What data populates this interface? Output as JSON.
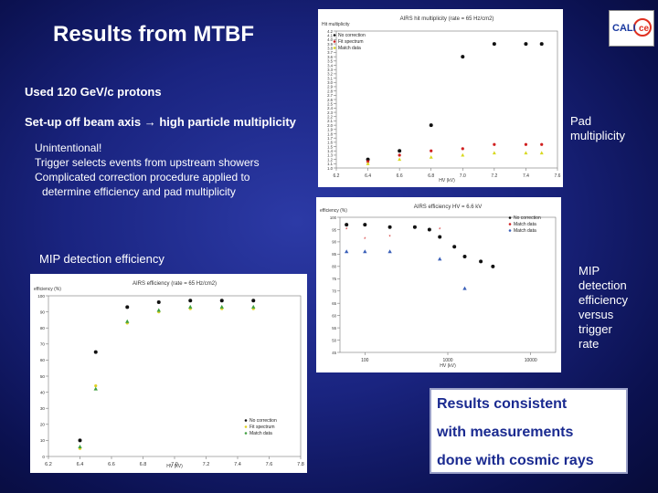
{
  "slide": {
    "title": "Results from MTBF",
    "line1": "Used 120 GeV/c protons",
    "line2": "Set-up off beam axis → high particle multiplicity",
    "notes": [
      "Unintentional!",
      "Trigger selects events from upstream showers",
      "Complicated correction procedure applied to",
      "   determine efficiency and pad multiplicity"
    ],
    "mip_label": "MIP detection efficiency",
    "pad_label": [
      "Pad",
      "multiplicity"
    ],
    "mip_rate_label": [
      "MIP",
      "detection",
      "efficiency",
      "versus",
      "trigger",
      "rate"
    ],
    "results_box": [
      "Results consistent",
      "with measurements",
      "done with cosmic rays"
    ],
    "logo_text": "CALICE"
  },
  "chart_data": [
    {
      "type": "scatter",
      "title": "AIRS hit multiplicity (rate = 65 Hz/cm2)",
      "ylabel": "Hit multiplicity",
      "xlabel": "HV (kV)",
      "xlim": [
        6.2,
        7.6
      ],
      "ylim": [
        1.0,
        4.2
      ],
      "x_ticks": [
        6.2,
        6.4,
        6.6,
        6.8,
        7.0,
        7.2,
        7.4,
        7.6
      ],
      "x_tick_labels": [
        "6.2",
        "6.4",
        "6.6",
        "6.8",
        "7.0",
        "7.2",
        "7.4",
        "7.6"
      ],
      "y_ticks": [
        1.0,
        1.1,
        1.2,
        1.3,
        1.4,
        1.5,
        1.6,
        1.7,
        1.8,
        1.9,
        2.0,
        2.1,
        2.2,
        2.3,
        2.4,
        2.5,
        2.6,
        2.7,
        2.8,
        2.9,
        3.0,
        3.1,
        3.2,
        3.3,
        3.4,
        3.5,
        3.6,
        3.7,
        3.8,
        3.9,
        4.0,
        4.1,
        4.2
      ],
      "y_tick_labels": [
        "1.0",
        "1.1",
        "1.2",
        "1.3",
        "1.4",
        "1.5",
        "1.6",
        "1.7",
        "1.8",
        "1.9",
        "2.0",
        "2.1",
        "2.2",
        "2.3",
        "2.4",
        "2.5",
        "2.6",
        "2.7",
        "2.8",
        "2.9",
        "3.0",
        "3.1",
        "3.2",
        "3.3",
        "3.4",
        "3.5",
        "3.6",
        "3.7",
        "3.8",
        "3.9",
        "4.0",
        "4.1",
        "4.2"
      ],
      "legend": [
        "No correction",
        "Fit spectrum",
        "Match data"
      ],
      "series": [
        {
          "name": "No correction",
          "color": "#111111",
          "x": [
            6.4,
            6.6,
            6.8,
            7.0,
            7.2,
            7.4,
            7.5
          ],
          "y": [
            1.2,
            1.4,
            2.0,
            3.6,
            3.9,
            3.9,
            3.9
          ]
        },
        {
          "name": "Fit spectrum",
          "color": "#d02020",
          "x": [
            6.4,
            6.6,
            6.8,
            7.0,
            7.2,
            7.4,
            7.5
          ],
          "y": [
            1.15,
            1.3,
            1.4,
            1.45,
            1.55,
            1.55,
            1.55
          ]
        },
        {
          "name": "Match data",
          "color": "#d8d820",
          "x": [
            6.4,
            6.6,
            6.8,
            7.0,
            7.2,
            7.4,
            7.5
          ],
          "y": [
            1.1,
            1.2,
            1.25,
            1.3,
            1.35,
            1.35,
            1.35
          ]
        }
      ]
    },
    {
      "type": "scatter",
      "title": "AIRS efficiency HV = 6.6 kV",
      "ylabel": "efficiency (%)",
      "xlabel": "HV (kV)",
      "log_x": true,
      "xlim": [
        50,
        20000
      ],
      "ylim": [
        45,
        100
      ],
      "x_ticks": [
        100,
        1000,
        10000
      ],
      "x_tick_labels": [
        "100",
        "1000",
        "10000"
      ],
      "y_ticks": [
        45,
        50,
        55,
        60,
        65,
        70,
        75,
        80,
        85,
        90,
        95,
        100
      ],
      "y_tick_labels": [
        "45",
        "50",
        "55",
        "60",
        "65",
        "70",
        "75",
        "80",
        "85",
        "90",
        "95",
        "100"
      ],
      "legend": [
        "No correction",
        "Match data",
        "Match data"
      ],
      "series": [
        {
          "name": "No correction",
          "color": "#111111",
          "x": [
            60,
            100,
            200,
            400,
            600,
            800,
            1200,
            1600,
            2500,
            3500
          ],
          "y": [
            97,
            97,
            96,
            96,
            95,
            92,
            88,
            84,
            82,
            80
          ]
        },
        {
          "name": "Match data",
          "color": "#d02020",
          "x": [
            60,
            100,
            200,
            800
          ],
          "y": [
            95,
            91,
            92,
            95
          ]
        },
        {
          "name": "Match data",
          "color": "#3a5fb8",
          "x": [
            60,
            100,
            200,
            800,
            1600
          ],
          "y": [
            86,
            86,
            86,
            83,
            71
          ]
        }
      ]
    },
    {
      "type": "scatter",
      "title": "AIRS efficiency (rate = 65 Hz/cm2)",
      "ylabel": "efficiency (%)",
      "xlabel": "HV (kV)",
      "xlim": [
        6.2,
        7.8
      ],
      "ylim": [
        0,
        100
      ],
      "x_ticks": [
        6.2,
        6.4,
        6.6,
        6.8,
        7.0,
        7.2,
        7.4,
        7.6,
        7.8
      ],
      "x_tick_labels": [
        "6.2",
        "6.4",
        "6.6",
        "6.8",
        "7.0",
        "7.2",
        "7.4",
        "7.6",
        "7.8"
      ],
      "y_ticks": [
        0,
        10,
        20,
        30,
        40,
        50,
        60,
        70,
        80,
        90,
        100
      ],
      "y_tick_labels": [
        "0",
        "10",
        "20",
        "30",
        "40",
        "50",
        "60",
        "70",
        "80",
        "90",
        "100"
      ],
      "legend": [
        "No correction",
        "Fit spectrum",
        "Match data"
      ],
      "series": [
        {
          "name": "No correction",
          "color": "#111111",
          "x": [
            6.4,
            6.5,
            6.7,
            6.9,
            7.1,
            7.3,
            7.5
          ],
          "y": [
            10,
            65,
            93,
            96,
            97,
            97,
            97
          ]
        },
        {
          "name": "Fit spectrum",
          "color": "#e0d020",
          "x": [
            6.4,
            6.5,
            6.7,
            6.9,
            7.1,
            7.3,
            7.5
          ],
          "y": [
            5,
            44,
            83,
            90,
            92,
            92,
            92
          ]
        },
        {
          "name": "Match data",
          "color": "#40a040",
          "x": [
            6.4,
            6.5,
            6.7,
            6.9,
            7.1,
            7.3,
            7.5
          ],
          "y": [
            6,
            42,
            84,
            91,
            93,
            93,
            93
          ]
        }
      ]
    }
  ]
}
